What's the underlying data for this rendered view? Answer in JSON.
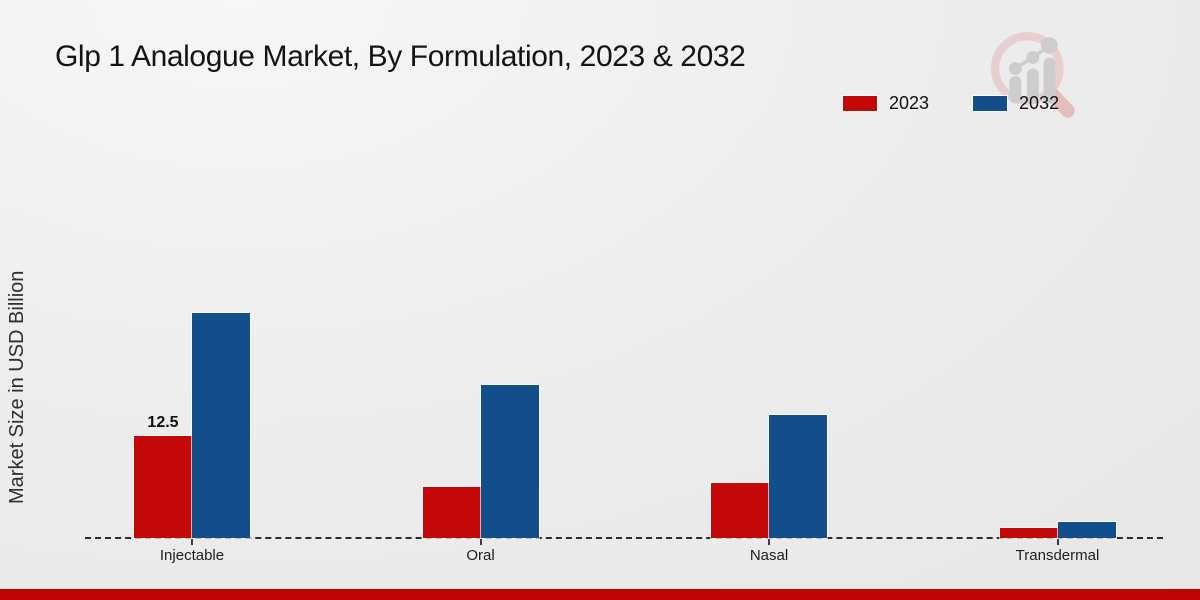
{
  "title": "Glp 1 Analogue Market, By Formulation, 2023 & 2032",
  "y_axis_label": "Market Size in USD Billion",
  "legend": {
    "items": [
      {
        "label": "2023",
        "color": "#c20808"
      },
      {
        "label": "2032",
        "color": "#114e8b"
      }
    ]
  },
  "chart_data": {
    "type": "bar",
    "title": "Glp 1 Analogue Market, By Formulation, 2023 & 2032",
    "ylabel": "Market Size in USD Billion",
    "xlabel": "",
    "categories": [
      "Injectable",
      "Oral",
      "Nasal",
      "Transdermal"
    ],
    "series": [
      {
        "name": "2023",
        "color": "#c20808",
        "values": [
          12.5,
          6.2,
          6.7,
          1.2
        ]
      },
      {
        "name": "2032",
        "color": "#114e8b",
        "values": [
          27.5,
          18.6,
          15.0,
          2.0
        ]
      }
    ],
    "data_labels": [
      {
        "category": "Injectable",
        "series": "2023",
        "text": "12.5"
      }
    ],
    "ylim": [
      0,
      30
    ],
    "grid": false,
    "legend_position": "top-right",
    "baseline_style": "dashed",
    "units": "USD Billion"
  },
  "icons": {
    "watermark": "magnifier-growth-chart-logo"
  },
  "footer": {
    "bar_color": "#c00404"
  }
}
